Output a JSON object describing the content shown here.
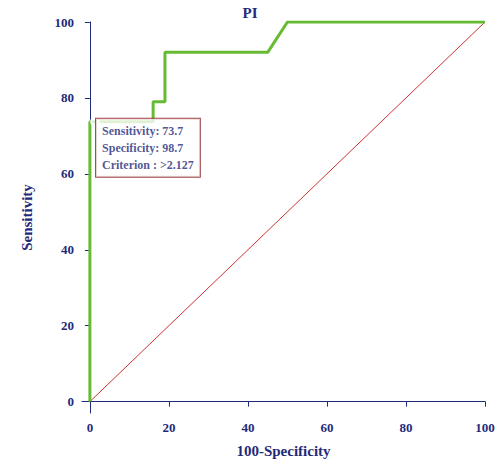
{
  "chart_data": {
    "type": "line",
    "title": "PI",
    "x_label": "100-Specificity",
    "y_label": "Sensitivity",
    "xlim": [
      -2,
      100
    ],
    "ylim": [
      -3,
      100
    ],
    "xticks": [
      0,
      20,
      40,
      60,
      80,
      100
    ],
    "yticks": [
      0,
      20,
      40,
      60,
      80,
      100
    ],
    "grid": false,
    "series": [
      {
        "color": "#66bb33",
        "line_style": "solid",
        "x": [
          0,
          0,
          1.3,
          16,
          16,
          19,
          19,
          45,
          50,
          100
        ],
        "values": [
          0,
          73.7,
          73.7,
          73.7,
          79,
          79,
          92,
          92,
          100,
          100
        ]
      },
      {
        "color": "#cc3333",
        "line_style": "solid",
        "x": [
          0,
          100
        ],
        "values": [
          0,
          100
        ]
      }
    ],
    "annotation": {
      "x": 1.3,
      "y": 73.7,
      "lines": [
        "Sensitivity: 73.7",
        "Specificity: 98.7",
        "Criterion : >2.127"
      ]
    }
  }
}
